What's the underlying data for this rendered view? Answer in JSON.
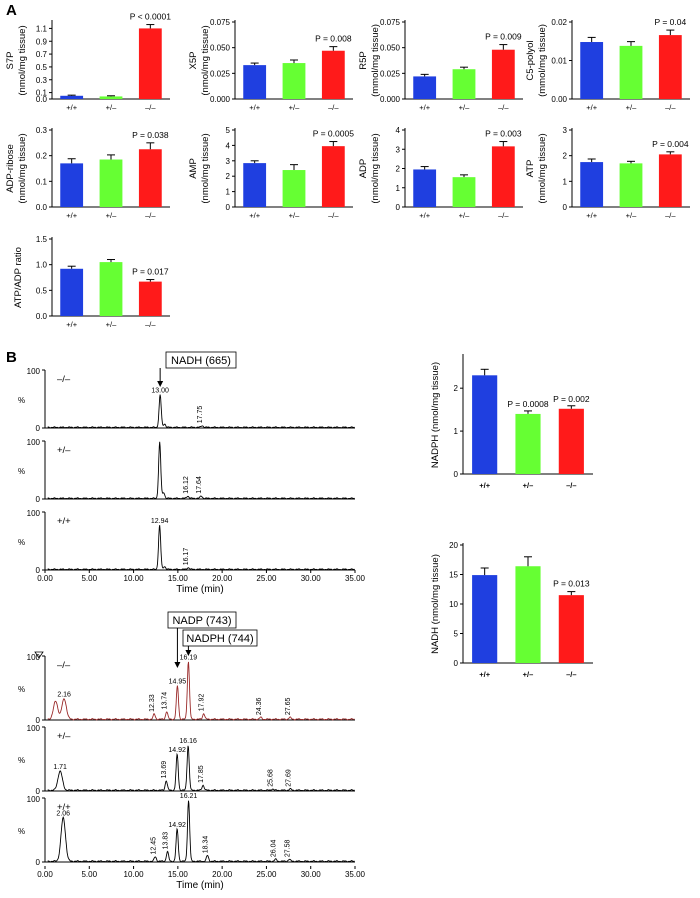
{
  "panels": {
    "a": "A",
    "b": "B"
  },
  "colors": {
    "wt": "#1f3fe0",
    "het": "#66ff33",
    "ko": "#ff1a1a",
    "trace": "#000000",
    "trace_ko2": "#9a2a2a"
  },
  "chart_data": [
    {
      "type": "bar",
      "id": "s7p",
      "ylabel": "S7P\n(nmol/mg tissue)",
      "categories": [
        "+/+",
        "+/–",
        "–/–"
      ],
      "values": [
        0.05,
        0.04,
        1.1
      ],
      "errors": [
        0.01,
        0.01,
        0.06
      ],
      "ylim": [
        0,
        1.2
      ],
      "yticks": [
        "0.0",
        "0.1",
        "0.3",
        "0.5",
        "0.7",
        "0.9",
        "1.1"
      ],
      "ytick_values": [
        0,
        0.1,
        0.3,
        0.5,
        0.7,
        0.9,
        1.1
      ],
      "annotation": "P < 0.0001"
    },
    {
      "type": "bar",
      "id": "x5p",
      "ylabel": "X5P\n(nmol/mg tissue)",
      "categories": [
        "+/+",
        "+/–",
        "–/–"
      ],
      "values": [
        0.033,
        0.035,
        0.047
      ],
      "errors": [
        0.002,
        0.003,
        0.004
      ],
      "ylim": [
        0,
        0.075
      ],
      "yticks": [
        "0.000",
        "0.025",
        "0.050",
        "0.075"
      ],
      "ytick_values": [
        0,
        0.025,
        0.05,
        0.075
      ],
      "annotation": "P = 0.008"
    },
    {
      "type": "bar",
      "id": "r5p",
      "ylabel": "R5P\n(mmol/mg tissue)",
      "categories": [
        "+/+",
        "+/–",
        "–/–"
      ],
      "values": [
        0.022,
        0.029,
        0.048
      ],
      "errors": [
        0.002,
        0.002,
        0.005
      ],
      "ylim": [
        0,
        0.075
      ],
      "yticks": [
        "0.000",
        "0.025",
        "0.050",
        "0.075"
      ],
      "ytick_values": [
        0,
        0.025,
        0.05,
        0.075
      ],
      "annotation": "P = 0.009"
    },
    {
      "type": "bar",
      "id": "c5polyol",
      "ylabel": "C5-polyol\n(mmol/mg tissue)",
      "categories": [
        "+/+",
        "+/–",
        "–/–"
      ],
      "values": [
        0.0148,
        0.0138,
        0.0166
      ],
      "errors": [
        0.0012,
        0.0011,
        0.0013
      ],
      "ylim": [
        0,
        0.02
      ],
      "yticks": [
        "0.00",
        "0.01",
        "0.02"
      ],
      "ytick_values": [
        0,
        0.01,
        0.02
      ],
      "annotation": "P = 0.04"
    },
    {
      "type": "bar",
      "id": "adpribose",
      "ylabel": "ADP-ribose\n(nmol/mg tissue)",
      "categories": [
        "+/+",
        "+/–",
        "–/–"
      ],
      "values": [
        0.17,
        0.185,
        0.225
      ],
      "errors": [
        0.018,
        0.018,
        0.025
      ],
      "ylim": [
        0,
        0.3
      ],
      "yticks": [
        "0.0",
        "0.1",
        "0.2",
        "0.3"
      ],
      "ytick_values": [
        0,
        0.1,
        0.2,
        0.3
      ],
      "annotation": "P = 0.038"
    },
    {
      "type": "bar",
      "id": "amp",
      "ylabel": "AMP\n(nmol/mg tissue)",
      "categories": [
        "+/+",
        "+/–",
        "–/–"
      ],
      "values": [
        2.85,
        2.4,
        3.95
      ],
      "errors": [
        0.15,
        0.35,
        0.3
      ],
      "ylim": [
        0,
        5
      ],
      "yticks": [
        "0",
        "1",
        "2",
        "3",
        "4",
        "5"
      ],
      "ytick_values": [
        0,
        1,
        2,
        3,
        4,
        5
      ],
      "annotation": "P = 0.0005"
    },
    {
      "type": "bar",
      "id": "adp",
      "ylabel": "ADP\n(nmol/mg tissue)",
      "categories": [
        "+/+",
        "+/–",
        "–/–"
      ],
      "values": [
        1.95,
        1.55,
        3.15
      ],
      "errors": [
        0.15,
        0.12,
        0.25
      ],
      "ylim": [
        0,
        4
      ],
      "yticks": [
        "0",
        "1",
        "2",
        "3",
        "4"
      ],
      "ytick_values": [
        0,
        1,
        2,
        3,
        4
      ],
      "annotation": "P = 0.003"
    },
    {
      "type": "bar",
      "id": "atp",
      "ylabel": "ATP\n(nmol/mg tissue)",
      "categories": [
        "+/+",
        "+/–",
        "–/–"
      ],
      "values": [
        1.75,
        1.7,
        2.05
      ],
      "errors": [
        0.12,
        0.08,
        0.1
      ],
      "ylim": [
        0,
        3
      ],
      "yticks": [
        "0",
        "1",
        "2",
        "3"
      ],
      "ytick_values": [
        0,
        1,
        2,
        3
      ],
      "annotation": "P = 0.004"
    },
    {
      "type": "bar",
      "id": "atpadp",
      "ylabel": "ATP/ADP ratio",
      "categories": [
        "+/+",
        "+/–",
        "–/–"
      ],
      "values": [
        0.92,
        1.05,
        0.67
      ],
      "errors": [
        0.05,
        0.05,
        0.04
      ],
      "ylim": [
        0,
        1.5
      ],
      "yticks": [
        "0.0",
        "0.5",
        "1.0",
        "1.5"
      ],
      "ytick_values": [
        0,
        0.5,
        1,
        1.5
      ],
      "annotation": "P = 0.017"
    },
    {
      "type": "bar",
      "id": "nadph",
      "ylabel": "NADPH (nmol/mg tissue)",
      "categories": [
        "+/+",
        "+/–",
        "–/–"
      ],
      "values": [
        2.3,
        1.4,
        1.52
      ],
      "errors": [
        0.14,
        0.07,
        0.07
      ],
      "ylim": [
        0,
        2.75
      ],
      "yticks": [
        "0",
        "1",
        "2"
      ],
      "ytick_values": [
        0,
        1,
        2
      ],
      "annotations": [
        "",
        "P = 0.0008",
        "P = 0.002"
      ]
    },
    {
      "type": "bar",
      "id": "nadh",
      "ylabel": "NADH (nmol/mg tissue)",
      "categories": [
        "+/+",
        "+/–",
        "–/–"
      ],
      "values": [
        14.9,
        16.4,
        11.5
      ],
      "errors": [
        1.2,
        1.6,
        0.6
      ],
      "ylim": [
        0,
        20
      ],
      "yticks": [
        "0",
        "5",
        "10",
        "15",
        "20"
      ],
      "ytick_values": [
        0,
        5,
        10,
        15,
        20
      ],
      "annotation": "P = 0.013"
    }
  ],
  "chromatograms": {
    "xlabel": "Time (min)",
    "ylabel": "%",
    "ytick_labels": [
      "0",
      "100"
    ],
    "xticks": [
      "0.00",
      "5.00",
      "10.00",
      "15.00",
      "20.00",
      "25.00",
      "30.00",
      "35.00"
    ],
    "xtick_values": [
      0,
      5,
      10,
      15,
      20,
      25,
      30,
      35
    ],
    "group1": {
      "callout": "NADH (665)",
      "traces": [
        {
          "genotype": "–/–",
          "peaks": [
            {
              "rt": 13.0,
              "h": 0.56,
              "label": "13.00"
            },
            {
              "rt": 13.5,
              "h": 0.06,
              "label": ""
            },
            {
              "rt": 17.75,
              "h": 0.03,
              "label": "17.75"
            }
          ]
        },
        {
          "genotype": "+/–",
          "peaks": [
            {
              "rt": 12.95,
              "h": 0.97,
              "label": ""
            },
            {
              "rt": 13.4,
              "h": 0.1,
              "label": ""
            },
            {
              "rt": 16.12,
              "h": 0.04,
              "label": "16.12"
            },
            {
              "rt": 17.64,
              "h": 0.04,
              "label": "17.64"
            }
          ]
        },
        {
          "genotype": "+/+",
          "peaks": [
            {
              "rt": 12.94,
              "h": 0.76,
              "label": "12.94"
            },
            {
              "rt": 13.5,
              "h": 0.05,
              "label": ""
            },
            {
              "rt": 16.17,
              "h": 0.03,
              "label": "16.17"
            }
          ]
        }
      ]
    },
    "group2": {
      "callouts": [
        "NADP (743)",
        "NADPH (744)"
      ],
      "traces": [
        {
          "genotype": "–/–",
          "peaks": [
            {
              "rt": 1.2,
              "h": 0.28,
              "label": ""
            },
            {
              "rt": 2.16,
              "h": 0.32,
              "label": "2.16"
            },
            {
              "rt": 12.33,
              "h": 0.08,
              "label": "12.33"
            },
            {
              "rt": 13.74,
              "h": 0.12,
              "label": "13.74"
            },
            {
              "rt": 14.95,
              "h": 0.52,
              "label": "14.95"
            },
            {
              "rt": 16.19,
              "h": 0.9,
              "label": "16.19"
            },
            {
              "rt": 17.92,
              "h": 0.09,
              "label": "17.92"
            },
            {
              "rt": 24.36,
              "h": 0.03,
              "label": "24.36"
            },
            {
              "rt": 27.65,
              "h": 0.03,
              "label": "27.65"
            }
          ]
        },
        {
          "genotype": "+/–",
          "peaks": [
            {
              "rt": 1.71,
              "h": 0.3,
              "label": "1.71"
            },
            {
              "rt": 13.69,
              "h": 0.15,
              "label": "13.69"
            },
            {
              "rt": 14.92,
              "h": 0.56,
              "label": "14.92"
            },
            {
              "rt": 16.16,
              "h": 0.7,
              "label": "16.16"
            },
            {
              "rt": 17.85,
              "h": 0.08,
              "label": "17.85"
            },
            {
              "rt": 25.68,
              "h": 0.02,
              "label": "25.68"
            },
            {
              "rt": 27.69,
              "h": 0.02,
              "label": "27.69"
            }
          ]
        },
        {
          "genotype": "+/+",
          "peaks": [
            {
              "rt": 2.06,
              "h": 0.68,
              "label": "2.06"
            },
            {
              "rt": 12.45,
              "h": 0.07,
              "label": "12.45"
            },
            {
              "rt": 13.83,
              "h": 0.15,
              "label": "13.83"
            },
            {
              "rt": 14.92,
              "h": 0.5,
              "label": "14.92"
            },
            {
              "rt": 16.21,
              "h": 0.95,
              "label": "16.21"
            },
            {
              "rt": 18.34,
              "h": 0.09,
              "label": "18.34"
            },
            {
              "rt": 26.04,
              "h": 0.03,
              "label": "26.04"
            },
            {
              "rt": 27.58,
              "h": 0.03,
              "label": "27.58"
            }
          ]
        }
      ]
    }
  }
}
